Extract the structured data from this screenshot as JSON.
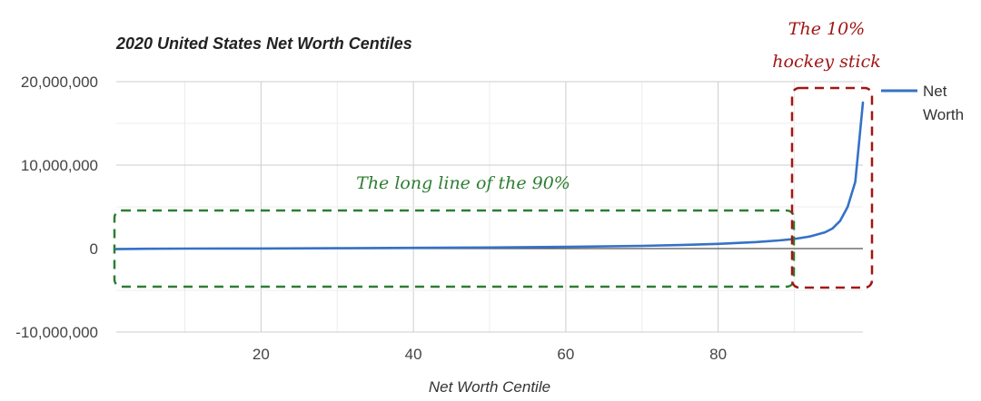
{
  "chart_data": {
    "type": "line",
    "title": "2020 United States Net Worth Centiles",
    "xlabel": "Net Worth Centile",
    "ylabel": "",
    "xlim": [
      1,
      99
    ],
    "ylim": [
      -10000000,
      20000000
    ],
    "x_ticks": [
      "20",
      "40",
      "60",
      "80"
    ],
    "y_ticks": [
      "20,000,000",
      "10,000,000",
      "0",
      "-10,000,000"
    ],
    "grid": true,
    "legend_position": "right",
    "series": [
      {
        "name": "Net Worth",
        "color": "#3572c6",
        "x": [
          1,
          5,
          10,
          20,
          30,
          40,
          50,
          60,
          70,
          75,
          80,
          85,
          88,
          90,
          92,
          94,
          95,
          96,
          97,
          98,
          99
        ],
        "y": [
          -60000,
          -20000,
          0,
          10000,
          40000,
          90000,
          130000,
          210000,
          330000,
          420000,
          560000,
          780000,
          980000,
          1150000,
          1450000,
          1950000,
          2400000,
          3300000,
          5000000,
          8000000,
          17500000
        ]
      }
    ],
    "annotations": [
      {
        "text": "The long line of the 90%",
        "color": "#2e7d32"
      },
      {
        "text_lines": [
          "The 10%",
          "hockey stick"
        ],
        "color": "#a31515"
      }
    ]
  }
}
